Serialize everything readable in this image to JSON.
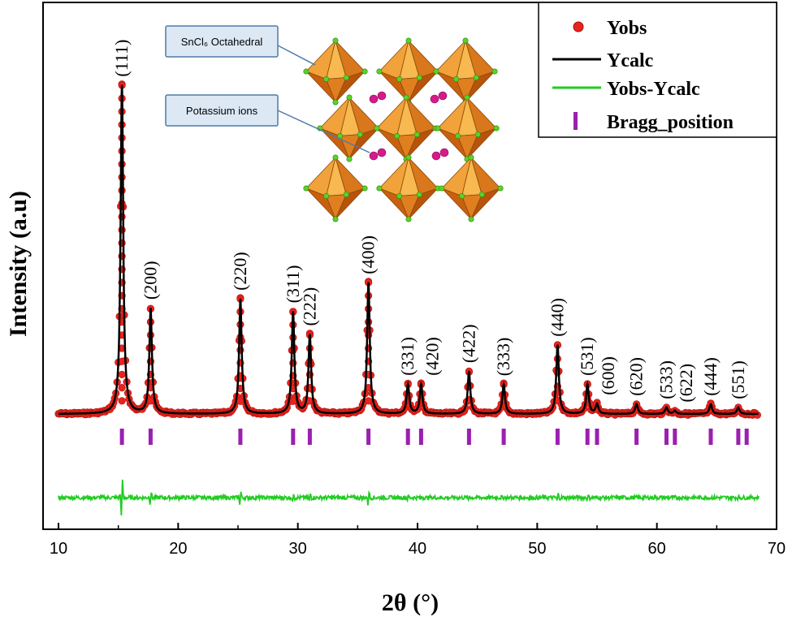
{
  "chart_data": {
    "type": "line",
    "xlabel": "2θ (°)",
    "ylabel": "Intensity (a.u)",
    "xlim": [
      10,
      70
    ],
    "x_ticks": [
      "10",
      "20",
      "30",
      "40",
      "50",
      "60",
      "70"
    ],
    "y_ticks_shown": false,
    "grid": false,
    "legend_position": "top-right",
    "legend": [
      {
        "name": "Yobs",
        "marker": "sphere",
        "color": "#e8231e"
      },
      {
        "name": "Ycalc",
        "marker": "line",
        "color": "#000000"
      },
      {
        "name": "Yobs-Ycalc",
        "marker": "line",
        "color": "#22cc22"
      },
      {
        "name": "Bragg_position",
        "marker": "tick",
        "color": "#9b1fb0"
      }
    ],
    "background_level": 0,
    "x_range_measured": [
      10,
      68.5
    ],
    "peaks": [
      {
        "hkl": "(111)",
        "two_theta": 15.3,
        "intensity": 100
      },
      {
        "hkl": "(200)",
        "two_theta": 17.7,
        "intensity": 32
      },
      {
        "hkl": "(220)",
        "two_theta": 25.2,
        "intensity": 35
      },
      {
        "hkl": "(311)",
        "two_theta": 29.6,
        "intensity": 31
      },
      {
        "hkl": "(222)",
        "two_theta": 31.0,
        "intensity": 24
      },
      {
        "hkl": "(400)",
        "two_theta": 35.9,
        "intensity": 40
      },
      {
        "hkl": "(331)",
        "two_theta": 39.2,
        "intensity": 9
      },
      {
        "hkl": "(420)",
        "two_theta": 40.3,
        "intensity": 9
      },
      {
        "hkl": "(422)",
        "two_theta": 44.3,
        "intensity": 13
      },
      {
        "hkl": "(333)",
        "two_theta": 47.2,
        "intensity": 9
      },
      {
        "hkl": "(440)",
        "two_theta": 51.7,
        "intensity": 21
      },
      {
        "hkl": "(531)",
        "two_theta": 54.2,
        "intensity": 9
      },
      {
        "hkl": "(600)",
        "two_theta": 55.0,
        "intensity": 3
      },
      {
        "hkl": "(620)",
        "two_theta": 58.3,
        "intensity": 3
      },
      {
        "hkl": "(533)",
        "two_theta": 60.8,
        "intensity": 2
      },
      {
        "hkl": "(622)",
        "two_theta": 61.5,
        "intensity": 1
      },
      {
        "hkl": "(444)",
        "two_theta": 64.5,
        "intensity": 3
      },
      {
        "hkl": "(551)",
        "two_theta": 66.8,
        "intensity": 2
      }
    ],
    "bragg_positions": [
      15.3,
      17.7,
      25.2,
      29.6,
      31.0,
      35.9,
      39.2,
      40.3,
      44.3,
      47.2,
      51.7,
      54.2,
      55.0,
      58.3,
      60.8,
      61.5,
      64.5,
      66.8,
      67.5
    ],
    "inset": {
      "labels": [
        "SnCl₆ Octahedral",
        "Potassium ions"
      ]
    }
  }
}
